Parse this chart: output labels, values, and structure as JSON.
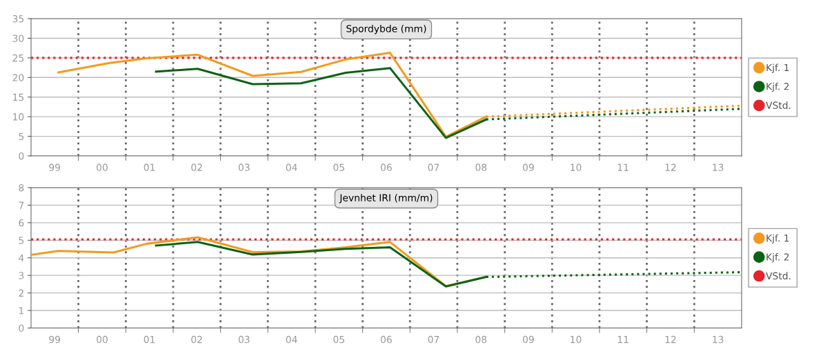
{
  "chart_data": [
    {
      "type": "line",
      "title": "Spordybde (mm)",
      "xlim": [
        "1999-01-01",
        "2014-01-01"
      ],
      "xticks": [
        {
          "value": "1999-07-02",
          "label": "99"
        },
        {
          "value": "2000-07-02",
          "label": "00"
        },
        {
          "value": "2001-07-02",
          "label": "01"
        },
        {
          "value": "2002-07-02",
          "label": "02"
        },
        {
          "value": "2003-07-02",
          "label": "03"
        },
        {
          "value": "2004-07-02",
          "label": "04"
        },
        {
          "value": "2005-07-02",
          "label": "05"
        },
        {
          "value": "2006-07-02",
          "label": "06"
        },
        {
          "value": "2007-07-02",
          "label": "07"
        },
        {
          "value": "2008-07-02",
          "label": "08"
        },
        {
          "value": "2009-07-02",
          "label": "09"
        },
        {
          "value": "2010-07-02",
          "label": "10"
        },
        {
          "value": "2011-07-02",
          "label": "11"
        },
        {
          "value": "2012-07-02",
          "label": "12"
        },
        {
          "value": "2013-07-02",
          "label": "13"
        },
        {
          "value": "2000-01-01",
          "label": null
        },
        {
          "value": "2001-01-01",
          "label": null
        },
        {
          "value": "2002-01-01",
          "label": null
        },
        {
          "value": "2003-01-01",
          "label": null
        },
        {
          "value": "2004-01-01",
          "label": null
        },
        {
          "value": "2005-01-01",
          "label": null
        },
        {
          "value": "2006-01-01",
          "label": null
        },
        {
          "value": "2007-01-01",
          "label": null
        },
        {
          "value": "2008-01-01",
          "label": null
        },
        {
          "value": "2009-01-01",
          "label": null
        },
        {
          "value": "2010-01-01",
          "label": null
        },
        {
          "value": "2011-01-01",
          "label": null
        },
        {
          "value": "2012-01-01",
          "label": null
        },
        {
          "value": "2013-01-01",
          "label": null
        }
      ],
      "ylim": [
        0,
        35
      ],
      "yticks": [
        0,
        5,
        10,
        15,
        20,
        25,
        30,
        35
      ],
      "grid": true,
      "legend": "right",
      "series": [
        {
          "name": "Kjf. 1",
          "color": "#f39a1e",
          "x": [
            "1999-07-31",
            "2000-08-29",
            "2001-06-13",
            "2002-07-09",
            "2003-09-06",
            "2004-09-13",
            "2005-08-22",
            "2006-07-31",
            "2007-10-05",
            "2008-08-11"
          ],
          "values": [
            21.3,
            23.7,
            24.9,
            25.8,
            20.4,
            21.4,
            24.6,
            26.3,
            4.9,
            10.0
          ]
        },
        {
          "color": "#f39a1e",
          "line_style": "dotted",
          "x": [
            "2008-08-11",
            "2013-12-28"
          ],
          "values": [
            10.0,
            12.8
          ]
        },
        {
          "name": "Kjf. 2",
          "color": "#0a6314",
          "x": [
            "2001-08-22",
            "2002-07-09",
            "2003-09-06",
            "2004-09-13",
            "2005-08-22",
            "2006-07-31",
            "2007-10-05",
            "2008-08-11"
          ],
          "values": [
            21.5,
            22.2,
            18.3,
            18.5,
            21.2,
            22.4,
            4.6,
            9.3
          ]
        },
        {
          "color": "#0a6314",
          "line_style": "dotted",
          "x": [
            "2008-08-11",
            "2013-12-28"
          ],
          "values": [
            9.3,
            12.0
          ]
        }
      ],
      "ref_lines": [
        {
          "axis": "y",
          "value": 25,
          "label": "VStd.",
          "color": "#e8222a",
          "line_style": "dotted"
        }
      ]
    },
    {
      "type": "line",
      "title": "Jevnhet IRI (mm/m)",
      "xlim": [
        "1999-01-01",
        "2014-01-01"
      ],
      "xticks": [
        {
          "value": "1999-07-02",
          "label": "99"
        },
        {
          "value": "2000-07-02",
          "label": "00"
        },
        {
          "value": "2001-07-02",
          "label": "01"
        },
        {
          "value": "2002-07-02",
          "label": "02"
        },
        {
          "value": "2003-07-02",
          "label": "03"
        },
        {
          "value": "2004-07-02",
          "label": "04"
        },
        {
          "value": "2005-07-02",
          "label": "05"
        },
        {
          "value": "2006-07-02",
          "label": "06"
        },
        {
          "value": "2007-07-02",
          "label": "07"
        },
        {
          "value": "2008-07-02",
          "label": "08"
        },
        {
          "value": "2009-07-02",
          "label": "09"
        },
        {
          "value": "2010-07-02",
          "label": "10"
        },
        {
          "value": "2011-07-02",
          "label": "11"
        },
        {
          "value": "2012-07-02",
          "label": "12"
        },
        {
          "value": "2013-07-02",
          "label": "13"
        },
        {
          "value": "2000-01-01",
          "label": null
        },
        {
          "value": "2001-01-01",
          "label": null
        },
        {
          "value": "2002-01-01",
          "label": null
        },
        {
          "value": "2003-01-01",
          "label": null
        },
        {
          "value": "2004-01-01",
          "label": null
        },
        {
          "value": "2005-01-01",
          "label": null
        },
        {
          "value": "2006-01-01",
          "label": null
        },
        {
          "value": "2007-01-01",
          "label": null
        },
        {
          "value": "2008-01-01",
          "label": null
        },
        {
          "value": "2009-01-01",
          "label": null
        },
        {
          "value": "2010-01-01",
          "label": null
        },
        {
          "value": "2011-01-01",
          "label": null
        },
        {
          "value": "2012-01-01",
          "label": null
        },
        {
          "value": "2013-01-01",
          "label": null
        }
      ],
      "ylim": [
        0,
        8
      ],
      "yticks": [
        0,
        1,
        2,
        3,
        4,
        5,
        6,
        7,
        8
      ],
      "grid": true,
      "legend": "right",
      "series": [
        {
          "name": "Kjf. 1",
          "color": "#f39a1e",
          "x": [
            "1999-01-01",
            "1999-07-31",
            "2000-09-27",
            "2001-06-10",
            "2002-07-09",
            "2003-09-06",
            "2004-09-13",
            "2005-08-22",
            "2006-07-31",
            "2007-10-05",
            "2008-08-11"
          ],
          "values": [
            4.17,
            4.39,
            4.3,
            4.8,
            5.17,
            4.32,
            4.36,
            4.6,
            4.9,
            2.39,
            2.91
          ]
        },
        {
          "name": "Kjf. 2",
          "color": "#0a6314",
          "x": [
            "2001-08-22",
            "2002-07-09",
            "2003-09-06",
            "2004-09-13",
            "2005-08-22",
            "2006-07-31",
            "2007-10-05",
            "2008-08-11"
          ],
          "values": [
            4.7,
            4.9,
            4.19,
            4.33,
            4.51,
            4.6,
            2.37,
            2.91
          ]
        },
        {
          "color": "#0a6314",
          "line_style": "dotted",
          "x": [
            "2008-08-11",
            "2013-12-28"
          ],
          "values": [
            2.91,
            3.18
          ]
        }
      ],
      "ref_lines": [
        {
          "axis": "y",
          "value": 5.05,
          "label": "VStd.",
          "color": "#e8222a",
          "line_style": "dotted"
        }
      ]
    }
  ]
}
